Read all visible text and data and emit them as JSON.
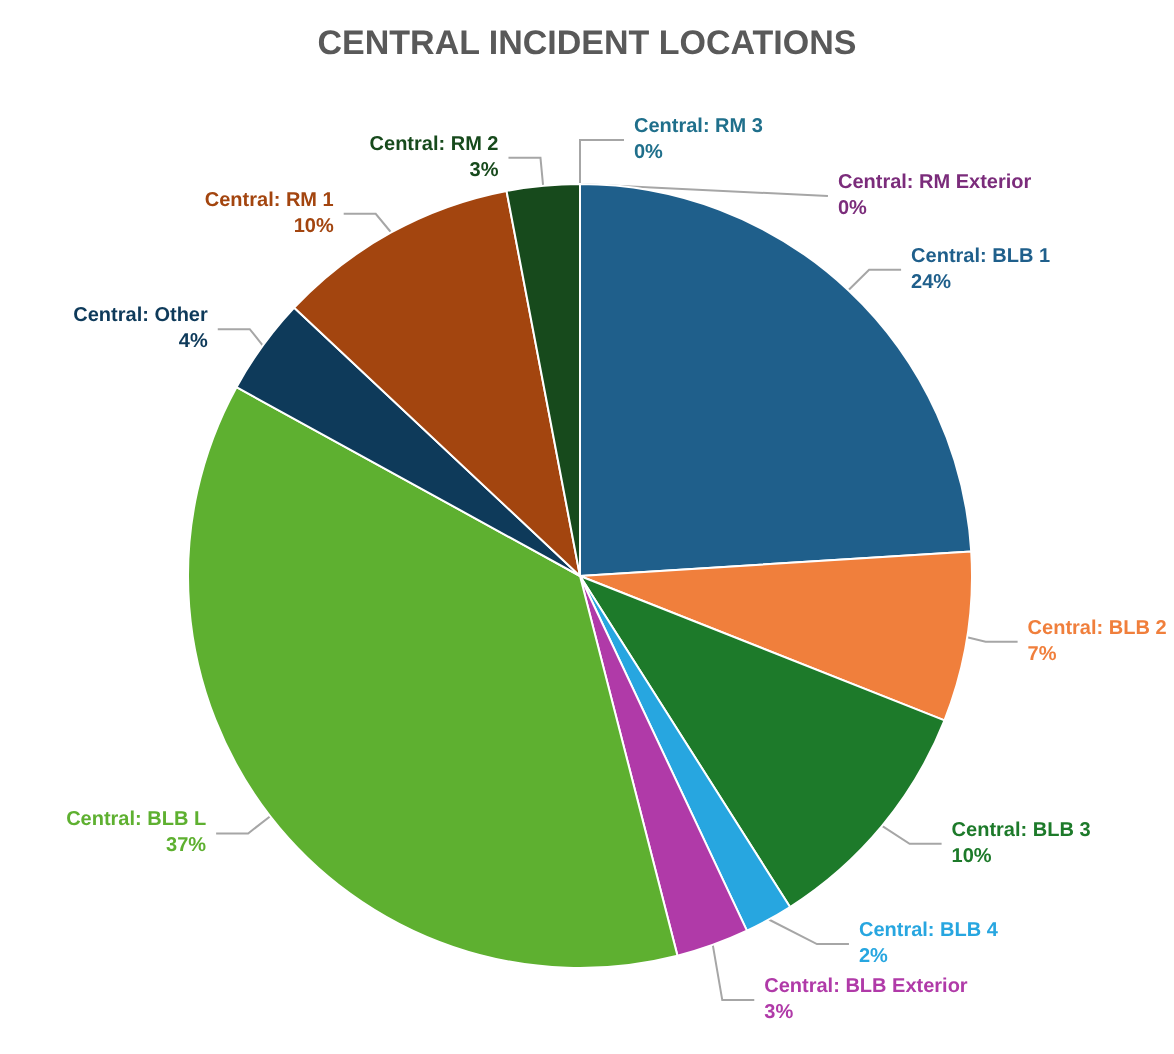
{
  "chart_data": {
    "type": "pie",
    "title": "CENTRAL INCIDENT LOCATIONS",
    "categories": [
      "Central: BLB 1",
      "Central: BLB 2",
      "Central: BLB 3",
      "Central: BLB 4",
      "Central: BLB Exterior",
      "Central: BLB L",
      "Central: Other",
      "Central: RM 1",
      "Central: RM 2",
      "Central: RM 3",
      "Central: RM Exterior"
    ],
    "values": [
      24,
      7,
      10,
      2,
      3,
      37,
      4,
      10,
      3,
      0,
      0
    ],
    "value_labels": [
      "24%",
      "7%",
      "10%",
      "2%",
      "3%",
      "37%",
      "4%",
      "10%",
      "3%",
      "0%",
      "0%"
    ],
    "colors": [
      "#1f5f8b",
      "#f07f3c",
      "#1d7a2a",
      "#27a6e0",
      "#b03aa8",
      "#5eb030",
      "#0e3a5a",
      "#a3450f",
      "#174a1c",
      "#1f6f8b",
      "#7b2c7b"
    ],
    "legend": false
  }
}
